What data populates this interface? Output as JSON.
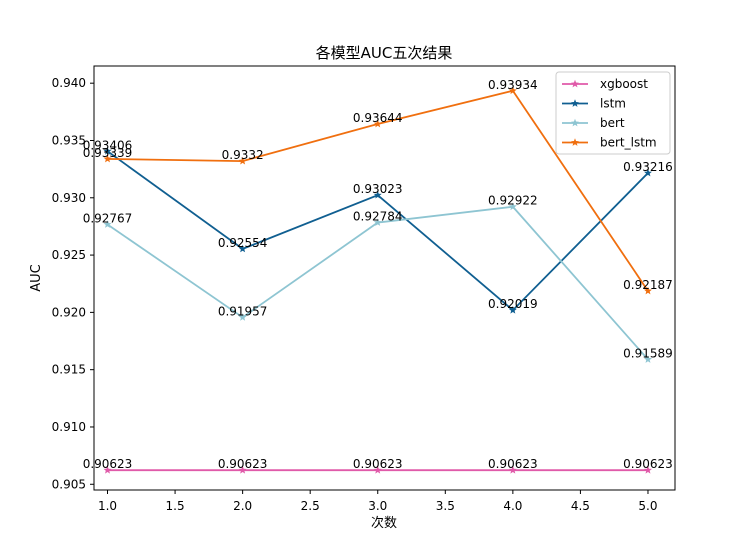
{
  "chart_data": {
    "type": "line",
    "title": "各模型AUC五次结果",
    "xlabel": "次数",
    "ylabel": "AUC",
    "x": [
      1,
      2,
      3,
      4,
      5
    ],
    "xlim": [
      0.9,
      5.2
    ],
    "ylim": [
      0.9045,
      0.9415
    ],
    "xticks": [
      1.0,
      1.5,
      2.0,
      2.5,
      3.0,
      3.5,
      4.0,
      4.5,
      5.0
    ],
    "xtick_labels": [
      "1.0",
      "1.5",
      "2.0",
      "2.5",
      "3.0",
      "3.5",
      "4.0",
      "4.5",
      "5.0"
    ],
    "yticks": [
      0.905,
      0.91,
      0.915,
      0.92,
      0.925,
      0.93,
      0.935,
      0.94
    ],
    "ytick_labels": [
      "0.905",
      "0.910",
      "0.915",
      "0.920",
      "0.925",
      "0.930",
      "0.935",
      "0.940"
    ],
    "grid": false,
    "legend_position": "top-right",
    "series": [
      {
        "name": "xgboost",
        "color": "#e05aa9",
        "values": [
          0.90623,
          0.90623,
          0.90623,
          0.90623,
          0.90623
        ],
        "labels": [
          "0.90623",
          "0.90623",
          "0.90623",
          "0.90623",
          "0.90623"
        ]
      },
      {
        "name": "lstm",
        "color": "#105f91",
        "values": [
          0.93406,
          0.92554,
          0.93023,
          0.92019,
          0.93216
        ],
        "labels": [
          "0.93406",
          "0.92554",
          "0.93023",
          "0.92019",
          "0.93216"
        ]
      },
      {
        "name": "bert",
        "color": "#8ec5d2",
        "values": [
          0.92767,
          0.91957,
          0.92784,
          0.92922,
          0.91589
        ],
        "labels": [
          "0.92767",
          "0.91957",
          "0.92784",
          "0.92922",
          "0.91589"
        ]
      },
      {
        "name": "bert_lstm",
        "color": "#f06f0f",
        "values": [
          0.93339,
          0.9332,
          0.93644,
          0.93934,
          0.92187
        ],
        "labels": [
          "0.93339",
          "0.9332",
          "0.93644",
          "0.93934",
          "0.92187"
        ]
      }
    ]
  }
}
